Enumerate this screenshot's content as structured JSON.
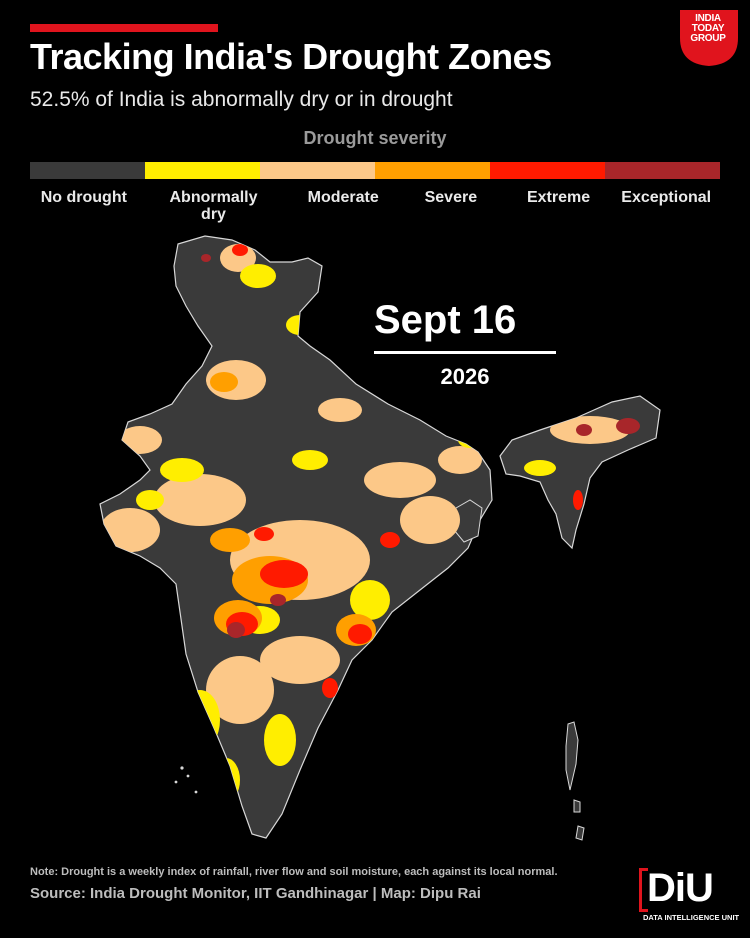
{
  "header": {
    "title": "Tracking India's Drought Zones",
    "subtitle": "52.5% of India is abnormally dry or in drought"
  },
  "brand_logo": {
    "line1": "INDIA",
    "line2": "TODAY",
    "line3": "GROUP",
    "icon": "india-today-group-logo",
    "color": "#e0141d"
  },
  "legend": {
    "title": "Drought severity",
    "items": [
      {
        "label": "No drought",
        "color": "#3a3a3a"
      },
      {
        "label": "Abnormally dry",
        "color": "#ffee00"
      },
      {
        "label": "Moderate",
        "color": "#fcc888"
      },
      {
        "label": "Severe",
        "color": "#ff9f00"
      },
      {
        "label": "Extreme",
        "color": "#ff1a00"
      },
      {
        "label": "Exceptional",
        "color": "#a8262a"
      }
    ]
  },
  "date": {
    "day": "Sept 16",
    "year": "2026"
  },
  "footer": {
    "note": "Note: Drought is a weekly index of rainfall, river flow and soil moisture, each against its local normal.",
    "source": "Source: India Drought Monitor, IIT Gandhinagar | Map: Dipu Rai"
  },
  "diu_logo": {
    "mark": "DiU",
    "caption": "DATA INTELLIGENCE UNIT",
    "icon": "diu-logo"
  }
}
